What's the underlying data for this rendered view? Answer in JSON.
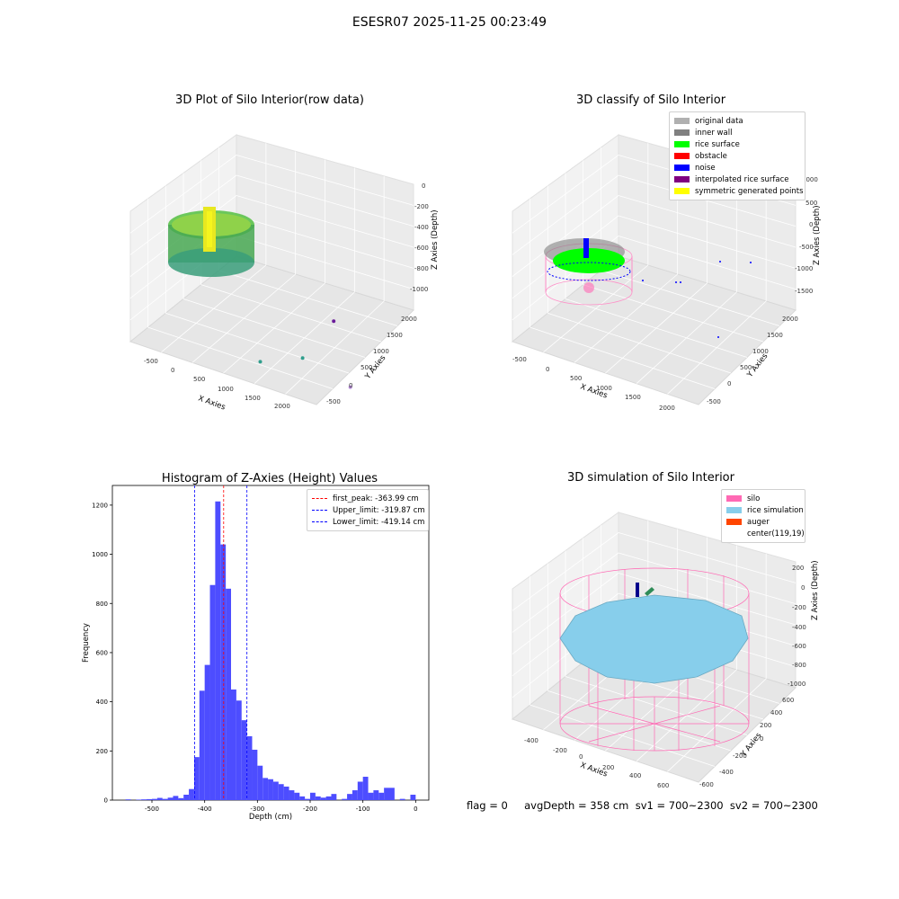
{
  "suptitle": "ESESR07 2025-11-25 00:23:49",
  "panels": {
    "raw": {
      "title": "3D Plot of Silo Interior(row data)",
      "x_ticks": [
        "-500",
        "0",
        "500",
        "1000",
        "1500",
        "2000"
      ],
      "y_ticks": [
        "-500",
        "0",
        "500",
        "1000",
        "1500",
        "2000"
      ],
      "z_ticks": [
        "0",
        "-200",
        "-400",
        "-600",
        "-800",
        "-1000"
      ],
      "x_label": "X Axies",
      "y_label": "Y Axies",
      "z_label": "Z Axies (Depth)"
    },
    "classify": {
      "title": "3D classify of Silo Interior",
      "x_ticks": [
        "-500",
        "0",
        "500",
        "1000",
        "1500",
        "2000"
      ],
      "y_ticks": [
        "-500",
        "0",
        "500",
        "1000",
        "1500",
        "2000"
      ],
      "z_ticks": [
        "1000",
        "500",
        "0",
        "-500",
        "-1000",
        "-1500"
      ],
      "x_label": "X Axies",
      "y_label": "Y Axies",
      "z_label": "Z Axies (Depth)",
      "legend": [
        {
          "label": "original data",
          "color": "#b0b0b0"
        },
        {
          "label": "inner wall",
          "color": "#808080"
        },
        {
          "label": "rice surface",
          "color": "#00ff00"
        },
        {
          "label": "obstacle",
          "color": "#ff0000"
        },
        {
          "label": "noise",
          "color": "#0000ff"
        },
        {
          "label": "interpolated rice surface",
          "color": "#800080"
        },
        {
          "label": "symmetric generated points",
          "color": "#ffff00"
        }
      ]
    },
    "simulation": {
      "title": "3D simulation of Silo Interior",
      "x_ticks": [
        "-400",
        "-200",
        "0",
        "200",
        "400",
        "600"
      ],
      "y_ticks": [
        "-600",
        "-400",
        "-200",
        "0",
        "200",
        "400",
        "600"
      ],
      "z_ticks": [
        "200",
        "0",
        "-200",
        "-400",
        "-600",
        "-800",
        "-1000"
      ],
      "x_label": "X Axies",
      "y_label": "Y Axies",
      "z_label": "Z Axies (Depth)",
      "legend": [
        {
          "label": "silo",
          "color": "#ff69b4"
        },
        {
          "label": "rice simulation",
          "color": "#87ceeb"
        },
        {
          "label": "auger",
          "color": "#ff4500"
        },
        {
          "label": "center(119,19)",
          "color": ""
        }
      ]
    }
  },
  "chart_data": [
    {
      "type": "scatter",
      "title": "3D Plot of Silo Interior(row data)",
      "xlabel": "X Axies",
      "ylabel": "Y Axies",
      "zlabel": "Z Axies (Depth)",
      "xlim": [
        -600,
        2200
      ],
      "ylim": [
        -600,
        2100
      ],
      "zlim": [
        -1100,
        50
      ],
      "series": [
        {
          "values": [
            {
              "x": 1000,
              "y": 0,
              "z": -800
            },
            {
              "x": 1400,
              "y": 400,
              "z": -800
            },
            {
              "x": 2000,
              "y": 600,
              "z": -1000
            },
            {
              "x": 1100,
              "y": 1700,
              "z": -900
            }
          ]
        }
      ]
    },
    {
      "type": "scatter",
      "title": "3D classify of Silo Interior",
      "xlabel": "X Axies",
      "ylabel": "Y Axies",
      "zlabel": "Z Axies (Depth)",
      "xlim": [
        -600,
        2200
      ],
      "ylim": [
        -600,
        2100
      ],
      "zlim": [
        -1800,
        1200
      ],
      "series": [
        {
          "name": "original data"
        },
        {
          "name": "inner wall"
        },
        {
          "name": "rice surface"
        },
        {
          "name": "obstacle"
        },
        {
          "name": "noise"
        },
        {
          "name": "interpolated rice surface"
        },
        {
          "name": "symmetric generated points"
        }
      ]
    },
    {
      "type": "bar",
      "title": "Histogram of Z-Axies (Height) Values",
      "xlabel": "Depth (cm)",
      "ylabel": "Frequency",
      "x_ticks": [
        -500,
        -400,
        -300,
        -200,
        -100,
        0
      ],
      "y_ticks": [
        0,
        200,
        400,
        600,
        800,
        1000,
        1200
      ],
      "xlim": [
        -575,
        25
      ],
      "ylim": [
        0,
        1280
      ],
      "bin_width": 10,
      "bin_starts": [
        -550,
        -540,
        -530,
        -520,
        -510,
        -500,
        -490,
        -480,
        -470,
        -460,
        -450,
        -440,
        -430,
        -420,
        -410,
        -400,
        -390,
        -380,
        -370,
        -360,
        -350,
        -340,
        -330,
        -320,
        -310,
        -300,
        -290,
        -280,
        -270,
        -260,
        -250,
        -240,
        -230,
        -220,
        -210,
        -200,
        -190,
        -180,
        -170,
        -160,
        -150,
        -140,
        -130,
        -120,
        -110,
        -100,
        -90,
        -80,
        -70,
        -60,
        -50,
        -40,
        -30,
        -20,
        -10,
        0
      ],
      "values": [
        3,
        0,
        2,
        3,
        4,
        5,
        9,
        5,
        10,
        17,
        8,
        22,
        45,
        175,
        445,
        550,
        875,
        1215,
        1040,
        860,
        450,
        405,
        325,
        260,
        205,
        140,
        90,
        85,
        75,
        65,
        55,
        40,
        30,
        15,
        5,
        30,
        15,
        10,
        15,
        25,
        0,
        5,
        25,
        40,
        75,
        95,
        30,
        40,
        30,
        50,
        50,
        0,
        5,
        0,
        22,
        0
      ],
      "vlines": [
        {
          "label": "first_peak: -363.99 cm",
          "x": -363.99,
          "color": "#ff0000"
        },
        {
          "label": "Upper_limit: -319.87 cm",
          "x": -319.87,
          "color": "#0000ff"
        },
        {
          "label": "Lower_limit: -419.14 cm",
          "x": -419.14,
          "color": "#0000ff"
        }
      ],
      "bar_color": "#4d4dff"
    },
    {
      "type": "area",
      "title": "3D simulation of Silo Interior",
      "xlabel": "X Axies",
      "ylabel": "Y Axies",
      "zlabel": "Z Axies (Depth)",
      "xlim": [
        -500,
        700
      ],
      "ylim": [
        -700,
        700
      ],
      "zlim": [
        -1000,
        300
      ],
      "series": [
        {
          "name": "silo"
        },
        {
          "name": "rice simulation"
        },
        {
          "name": "auger"
        },
        {
          "name": "center(119,19)"
        }
      ]
    }
  ],
  "footer": {
    "text": "flag = 0     avgDepth = 358 cm  sv1 = 700~2300  sv2 = 700~2300"
  }
}
